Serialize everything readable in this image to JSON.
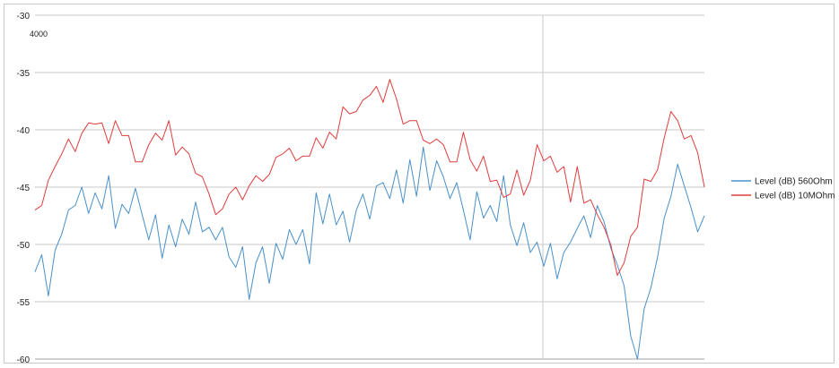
{
  "chart_data": {
    "type": "line",
    "title": "",
    "xlabel": "",
    "ylabel": "",
    "annotation": "4000",
    "ylim": [
      -60,
      -30
    ],
    "yticks": [
      -30,
      -35,
      -40,
      -45,
      -50,
      -55,
      -60
    ],
    "ytick_labels": [
      "-30",
      "-35",
      "-40",
      "-45",
      "-50",
      "-55",
      "-60"
    ],
    "grid": "horizontal",
    "legend_position": "right",
    "x": [
      0,
      4,
      8,
      12,
      16,
      20,
      24,
      28,
      32,
      36,
      40,
      44,
      48,
      52,
      56,
      60,
      64,
      68,
      72,
      76,
      80,
      84,
      88,
      92,
      96,
      100,
      104,
      108,
      112,
      116,
      120,
      124,
      128,
      132,
      136,
      140,
      144,
      148,
      152,
      156,
      160,
      164,
      168,
      172,
      176,
      180,
      184,
      188,
      192,
      196,
      200,
      204,
      208,
      212,
      216,
      220,
      224,
      228,
      232,
      236,
      240,
      244,
      248,
      252,
      256,
      260,
      264,
      268,
      272,
      276,
      280,
      284,
      288,
      292,
      296,
      300,
      304,
      308,
      312,
      316,
      320,
      324,
      328,
      332,
      336,
      340,
      344,
      348,
      352,
      356,
      360,
      364,
      368,
      372,
      376,
      380,
      384,
      388,
      392,
      396,
      400
    ],
    "series": [
      {
        "name": "Level (dB) 560Ohm",
        "color": "#4a90c8",
        "values": [
          -52.4,
          -50.9,
          -54.5,
          -50.5,
          -49.1,
          -47.0,
          -46.6,
          -45.0,
          -47.3,
          -45.5,
          -46.9,
          -44.0,
          -48.6,
          -46.5,
          -47.3,
          -45.1,
          -47.4,
          -49.6,
          -47.4,
          -51.2,
          -48.3,
          -50.2,
          -47.8,
          -49.1,
          -46.3,
          -48.9,
          -48.5,
          -49.6,
          -48.5,
          -51.1,
          -52.0,
          -50.2,
          -54.8,
          -51.6,
          -50.2,
          -53.4,
          -49.9,
          -51.3,
          -48.7,
          -50.0,
          -48.7,
          -51.7,
          -45.5,
          -48.2,
          -45.6,
          -48.3,
          -47.1,
          -49.8,
          -47.0,
          -45.6,
          -47.8,
          -44.9,
          -44.6,
          -46.0,
          -43.5,
          -46.4,
          -42.6,
          -45.8,
          -41.5,
          -45.3,
          -42.7,
          -44.1,
          -46.0,
          -44.6,
          -47.0,
          -49.6,
          -45.4,
          -47.7,
          -46.6,
          -48.0,
          -44.0,
          -48.3,
          -50.1,
          -48.1,
          -50.7,
          -49.8,
          -51.9,
          -49.9,
          -53.0,
          -50.7,
          -49.8,
          -48.6,
          -47.5,
          -49.4,
          -46.6,
          -48.0,
          -50.3,
          -51.8,
          -53.6,
          -58.0,
          -60.0,
          -55.6,
          -53.8,
          -51.1,
          -47.7,
          -45.8,
          -43.0,
          -44.9,
          -46.8,
          -48.9,
          -47.5
        ]
      },
      {
        "name": "Level (dB) 10MOhm",
        "color": "#e03c3c",
        "values": [
          -47.0,
          -46.6,
          -44.4,
          -43.2,
          -42.1,
          -40.8,
          -41.9,
          -40.3,
          -39.4,
          -39.5,
          -39.4,
          -41.2,
          -39.2,
          -40.5,
          -40.5,
          -42.8,
          -42.8,
          -41.3,
          -40.3,
          -40.9,
          -39.2,
          -42.2,
          -41.5,
          -42.1,
          -43.8,
          -44.1,
          -45.6,
          -47.4,
          -46.9,
          -45.6,
          -45.0,
          -46.1,
          -44.9,
          -44.0,
          -44.5,
          -43.9,
          -42.4,
          -42.1,
          -41.6,
          -42.7,
          -42.3,
          -42.3,
          -40.7,
          -41.6,
          -40.2,
          -40.8,
          -38.0,
          -38.6,
          -38.4,
          -37.4,
          -37.0,
          -36.2,
          -37.6,
          -35.6,
          -37.3,
          -39.5,
          -39.2,
          -39.2,
          -40.9,
          -41.2,
          -40.8,
          -41.3,
          -42.8,
          -42.8,
          -40.2,
          -42.6,
          -43.6,
          -42.3,
          -44.5,
          -44.4,
          -45.9,
          -45.6,
          -43.5,
          -45.7,
          -44.4,
          -41.3,
          -42.7,
          -42.3,
          -43.7,
          -43.2,
          -46.3,
          -43.2,
          -46.4,
          -46.1,
          -47.4,
          -48.5,
          -50.0,
          -52.7,
          -51.6,
          -49.3,
          -48.5,
          -44.3,
          -44.5,
          -43.5,
          -40.7,
          -38.4,
          -39.2,
          -40.8,
          -40.5,
          -42.0,
          -45.0
        ]
      }
    ]
  }
}
